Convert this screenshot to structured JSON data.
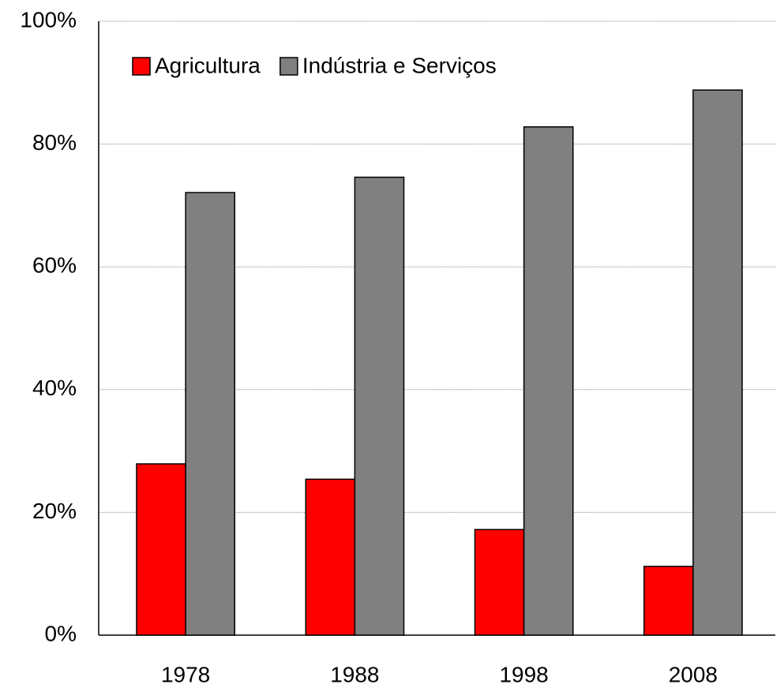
{
  "chart_data": {
    "type": "bar",
    "categories": [
      "1978",
      "1988",
      "1998",
      "2008"
    ],
    "series": [
      {
        "name": "Agricultura",
        "color": "#ff0000",
        "values": [
          27.9,
          25.4,
          17.2,
          11.2
        ]
      },
      {
        "name": "Indústria e Serviços",
        "color": "#808080",
        "values": [
          72.1,
          74.6,
          82.8,
          88.8
        ]
      }
    ],
    "ylim": [
      0,
      100
    ],
    "yticks": [
      {
        "value": 0,
        "label": "0%"
      },
      {
        "value": 20,
        "label": "20%"
      },
      {
        "value": 40,
        "label": "40%"
      },
      {
        "value": 60,
        "label": "60%"
      },
      {
        "value": 80,
        "label": "80%"
      },
      {
        "value": 100,
        "label": "100%"
      }
    ],
    "grid": true,
    "legend": "top-left"
  }
}
